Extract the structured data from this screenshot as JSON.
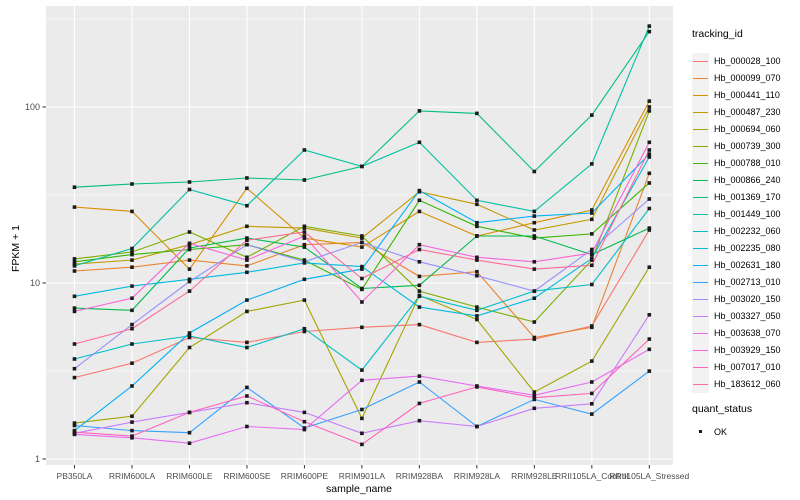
{
  "chart_data": {
    "type": "line",
    "title": "",
    "xlabel": "sample_name",
    "ylabel": "FPKM + 1",
    "y_scale": "log10",
    "y_ticks": [
      1,
      10,
      100
    ],
    "ylim": [
      0.93,
      380
    ],
    "grid": "on",
    "legend_position": "right",
    "point_shape": "black-square",
    "categories": [
      "PB350LA",
      "RRIM600LA",
      "RRIM600LE",
      "RRIM600SE",
      "RRIM600PE",
      "RRIM901LA",
      "RRIM928BA",
      "RRIM928LA",
      "RRIM928LE",
      "RRII105LA_Control",
      "RRII105LA_Stressed"
    ],
    "legend": {
      "tracking_title": "tracking_id",
      "quant_title": "quant_status",
      "quant_value": "OK",
      "quant_color": "#1a1a1a"
    },
    "series": [
      {
        "name": "Hb_000028_100",
        "color": "#F8766D",
        "values": [
          2.9,
          3.5,
          4.9,
          4.6,
          5.3,
          5.6,
          5.8,
          4.6,
          4.8,
          5.7,
          20
        ]
      },
      {
        "name": "Hb_000099_070",
        "color": "#EA8331",
        "values": [
          11.7,
          12.3,
          13.5,
          12.5,
          16.5,
          17.0,
          10.9,
          11.6,
          4.9,
          5.6,
          42
        ]
      },
      {
        "name": "Hb_000441_110",
        "color": "#D89000",
        "values": [
          27,
          25.5,
          12,
          34.5,
          18,
          16,
          25.5,
          18.5,
          22,
          26,
          108
        ]
      },
      {
        "name": "Hb_000487_230",
        "color": "#C09B00",
        "values": [
          12.8,
          13.5,
          16.5,
          21,
          20.5,
          18,
          33,
          28,
          20,
          23,
          100
        ]
      },
      {
        "name": "Hb_000694_060",
        "color": "#A3A500",
        "values": [
          1.6,
          1.75,
          4.3,
          6.9,
          8.0,
          1.7,
          8.5,
          6.2,
          2.4,
          3.6,
          12.3
        ]
      },
      {
        "name": "Hb_000739_300",
        "color": "#7CAE00",
        "values": [
          13.7,
          15,
          19.5,
          14,
          21,
          18.5,
          9.0,
          7.3,
          6.0,
          13.5,
          95
        ]
      },
      {
        "name": "Hb_000788_010",
        "color": "#39B600",
        "values": [
          13.2,
          14.5,
          15.5,
          16.5,
          13.5,
          9.2,
          29.5,
          21,
          18,
          19,
          37
        ]
      },
      {
        "name": "Hb_000866_240",
        "color": "#00BB4E",
        "values": [
          7.2,
          7.0,
          15.8,
          18,
          16,
          9.3,
          9.7,
          18.5,
          18.5,
          14.5,
          20.5
        ]
      },
      {
        "name": "Hb_001369_170",
        "color": "#00BF7D",
        "values": [
          35,
          36.5,
          37.5,
          39.5,
          38.5,
          46,
          95,
          92,
          43,
          90,
          268
        ]
      },
      {
        "name": "Hb_001449_100",
        "color": "#00C1A3",
        "values": [
          12.5,
          15.7,
          34,
          27.5,
          57,
          46,
          63,
          29.5,
          25.5,
          47.5,
          288
        ]
      },
      {
        "name": "Hb_002232_060",
        "color": "#00BFC4",
        "values": [
          3.7,
          4.5,
          5.0,
          4.3,
          5.5,
          3.2,
          8.4,
          7.0,
          9.0,
          9.8,
          26.5
        ]
      },
      {
        "name": "Hb_002235_080",
        "color": "#00BAE0",
        "values": [
          8.4,
          9.6,
          10.5,
          11.5,
          13,
          12.4,
          7.3,
          6.5,
          8.2,
          13.8,
          52
        ]
      },
      {
        "name": "Hb_002631_180",
        "color": "#00B0F6",
        "values": [
          1.45,
          2.6,
          5.2,
          8.0,
          10.5,
          12.0,
          33.5,
          22,
          24,
          25,
          54
        ]
      },
      {
        "name": "Hb_002713_010",
        "color": "#35A2FF",
        "values": [
          1.55,
          1.45,
          1.41,
          2.55,
          1.5,
          1.91,
          2.74,
          1.53,
          2.18,
          1.8,
          3.16
        ]
      },
      {
        "name": "Hb_003020_150",
        "color": "#9590FF",
        "values": [
          3.26,
          5.8,
          10.2,
          16.5,
          13.2,
          17,
          13.2,
          11.0,
          9.0,
          15.5,
          30
        ]
      },
      {
        "name": "Hb_003327_050",
        "color": "#C77CFF",
        "values": [
          1.4,
          1.62,
          1.84,
          2.09,
          1.84,
          1.4,
          1.65,
          1.53,
          1.94,
          2.06,
          6.6
        ]
      },
      {
        "name": "Hb_003638_070",
        "color": "#E76BF3",
        "values": [
          1.38,
          1.32,
          1.23,
          1.53,
          1.47,
          2.8,
          2.96,
          2.6,
          2.3,
          2.74,
          4.2
        ]
      },
      {
        "name": "Hb_003929_150",
        "color": "#FA62DB",
        "values": [
          6.9,
          8.2,
          16.8,
          13.5,
          18.5,
          7.8,
          16.5,
          14,
          13.2,
          14.8,
          63
        ]
      },
      {
        "name": "Hb_007017_010",
        "color": "#FF62BC",
        "values": [
          1.42,
          1.35,
          1.84,
          2.28,
          1.63,
          1.21,
          2.07,
          2.57,
          2.23,
          2.36,
          4.8
        ]
      },
      {
        "name": "Hb_183612_060",
        "color": "#FF6A98",
        "values": [
          4.5,
          5.5,
          9.0,
          17.5,
          19.5,
          10.6,
          15.5,
          13.5,
          12.0,
          12.6,
          57
        ]
      }
    ],
    "panel_bg": "#EBEBEB",
    "gridline_color": "#FFFFFF",
    "axis_text_color": "#4d4d4d"
  }
}
